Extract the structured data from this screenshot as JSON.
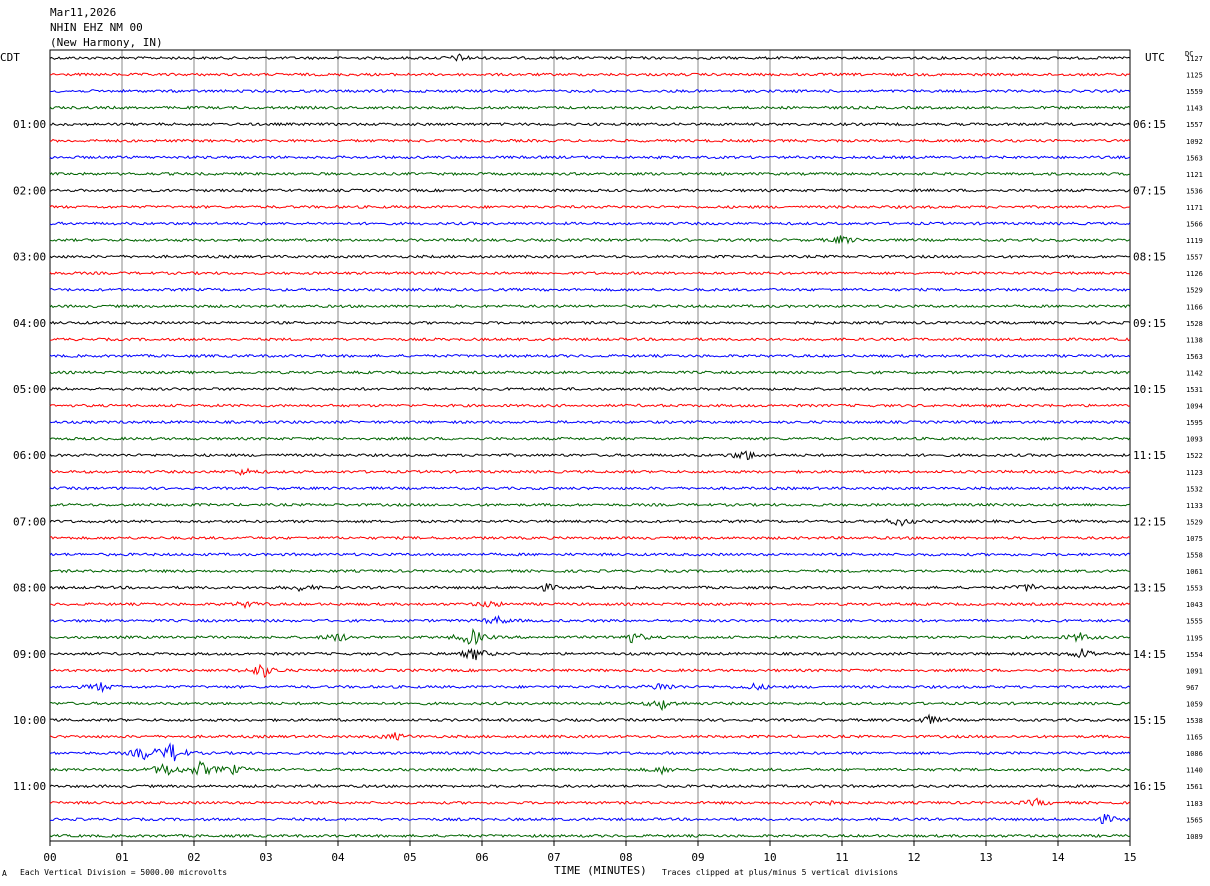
{
  "header": {
    "date": "Mar11,2026",
    "station": "NHIN EHZ NM 00",
    "location": "(New Harmony, IN)"
  },
  "left_tz": "CDT",
  "right_tz": "UTC",
  "dc_label": "DC",
  "footer": {
    "left": "Each Vertical Division = 5000.00 microvolts",
    "axis_title": "TIME (MINUTES)",
    "right": "Traces clipped at plus/minus 5 vertical divisions",
    "corner": "A"
  },
  "chart_data": {
    "type": "line",
    "xlabel": "TIME (MINUTES)",
    "xlim": [
      0,
      15
    ],
    "x_ticks": [
      "00",
      "01",
      "02",
      "03",
      "04",
      "05",
      "06",
      "07",
      "08",
      "09",
      "10",
      "11",
      "12",
      "13",
      "14",
      "15"
    ],
    "trace_colors": [
      "#000000",
      "#ff0000",
      "#0000ff",
      "#006400"
    ],
    "traces_per_hour": 4,
    "left_hour_labels": [
      "01:00",
      "02:00",
      "03:00",
      "04:00",
      "05:00",
      "06:00",
      "07:00",
      "08:00",
      "09:00",
      "10:00",
      "11:00"
    ],
    "right_hour_labels": [
      "06:15",
      "07:15",
      "08:15",
      "09:15",
      "10:15",
      "11:15",
      "12:15",
      "13:15",
      "14:15",
      "15:15",
      "16:15"
    ],
    "dc_offsets": [
      "1127",
      "1125",
      "1559",
      "1143",
      "1557",
      "1092",
      "1563",
      "1121",
      "1536",
      "1171",
      "1566",
      "1119",
      "1557",
      "1126",
      "1529",
      "1166",
      "1528",
      "1138",
      "1563",
      "1142",
      "1531",
      "1094",
      "1595",
      "1093",
      "1522",
      "1123",
      "1532",
      "1133",
      "1529",
      "1075",
      "1558",
      "1061",
      "1553",
      "1043",
      "1555",
      "1195",
      "1554",
      "1091",
      "967",
      "1059",
      "1538",
      "1165",
      "1086",
      "1140",
      "1561",
      "1183",
      "1565",
      "1089"
    ],
    "events": [
      {
        "trace": 0,
        "minute": 5.7,
        "amp": 1.5
      },
      {
        "trace": 11,
        "minute": 11.0,
        "amp": 2.0
      },
      {
        "trace": 24,
        "minute": 9.65,
        "amp": 2.5
      },
      {
        "trace": 25,
        "minute": 2.7,
        "amp": 1.5
      },
      {
        "trace": 28,
        "minute": 11.8,
        "amp": 2.0
      },
      {
        "trace": 32,
        "minute": 3.5,
        "amp": 1.5
      },
      {
        "trace": 32,
        "minute": 6.9,
        "amp": 1.5
      },
      {
        "trace": 32,
        "minute": 13.6,
        "amp": 2.0
      },
      {
        "trace": 33,
        "minute": 2.75,
        "amp": 1.5
      },
      {
        "trace": 33,
        "minute": 6.1,
        "amp": 1.5
      },
      {
        "trace": 34,
        "minute": 6.2,
        "amp": 2.0
      },
      {
        "trace": 35,
        "minute": 4.0,
        "amp": 2.0
      },
      {
        "trace": 35,
        "minute": 5.85,
        "amp": 4.5
      },
      {
        "trace": 35,
        "minute": 8.1,
        "amp": 2.5
      },
      {
        "trace": 35,
        "minute": 14.3,
        "amp": 2.0
      },
      {
        "trace": 36,
        "minute": 5.9,
        "amp": 3.0
      },
      {
        "trace": 36,
        "minute": 14.35,
        "amp": 2.5
      },
      {
        "trace": 37,
        "minute": 2.95,
        "amp": 3.5
      },
      {
        "trace": 38,
        "minute": 0.7,
        "amp": 2.0
      },
      {
        "trace": 38,
        "minute": 8.5,
        "amp": 2.0
      },
      {
        "trace": 38,
        "minute": 9.8,
        "amp": 1.5
      },
      {
        "trace": 39,
        "minute": 8.5,
        "amp": 2.5
      },
      {
        "trace": 40,
        "minute": 12.2,
        "amp": 2.0
      },
      {
        "trace": 41,
        "minute": 4.8,
        "amp": 1.5
      },
      {
        "trace": 42,
        "minute": 1.3,
        "amp": 3.0
      },
      {
        "trace": 42,
        "minute": 1.7,
        "amp": 5.0
      },
      {
        "trace": 43,
        "minute": 1.6,
        "amp": 3.5
      },
      {
        "trace": 43,
        "minute": 2.1,
        "amp": 3.5
      },
      {
        "trace": 43,
        "minute": 2.55,
        "amp": 2.0
      },
      {
        "trace": 43,
        "minute": 8.5,
        "amp": 1.5
      },
      {
        "trace": 45,
        "minute": 10.7,
        "amp": 2.0
      },
      {
        "trace": 45,
        "minute": 13.7,
        "amp": 1.5
      },
      {
        "trace": 46,
        "minute": 14.65,
        "amp": 2.0
      }
    ]
  }
}
